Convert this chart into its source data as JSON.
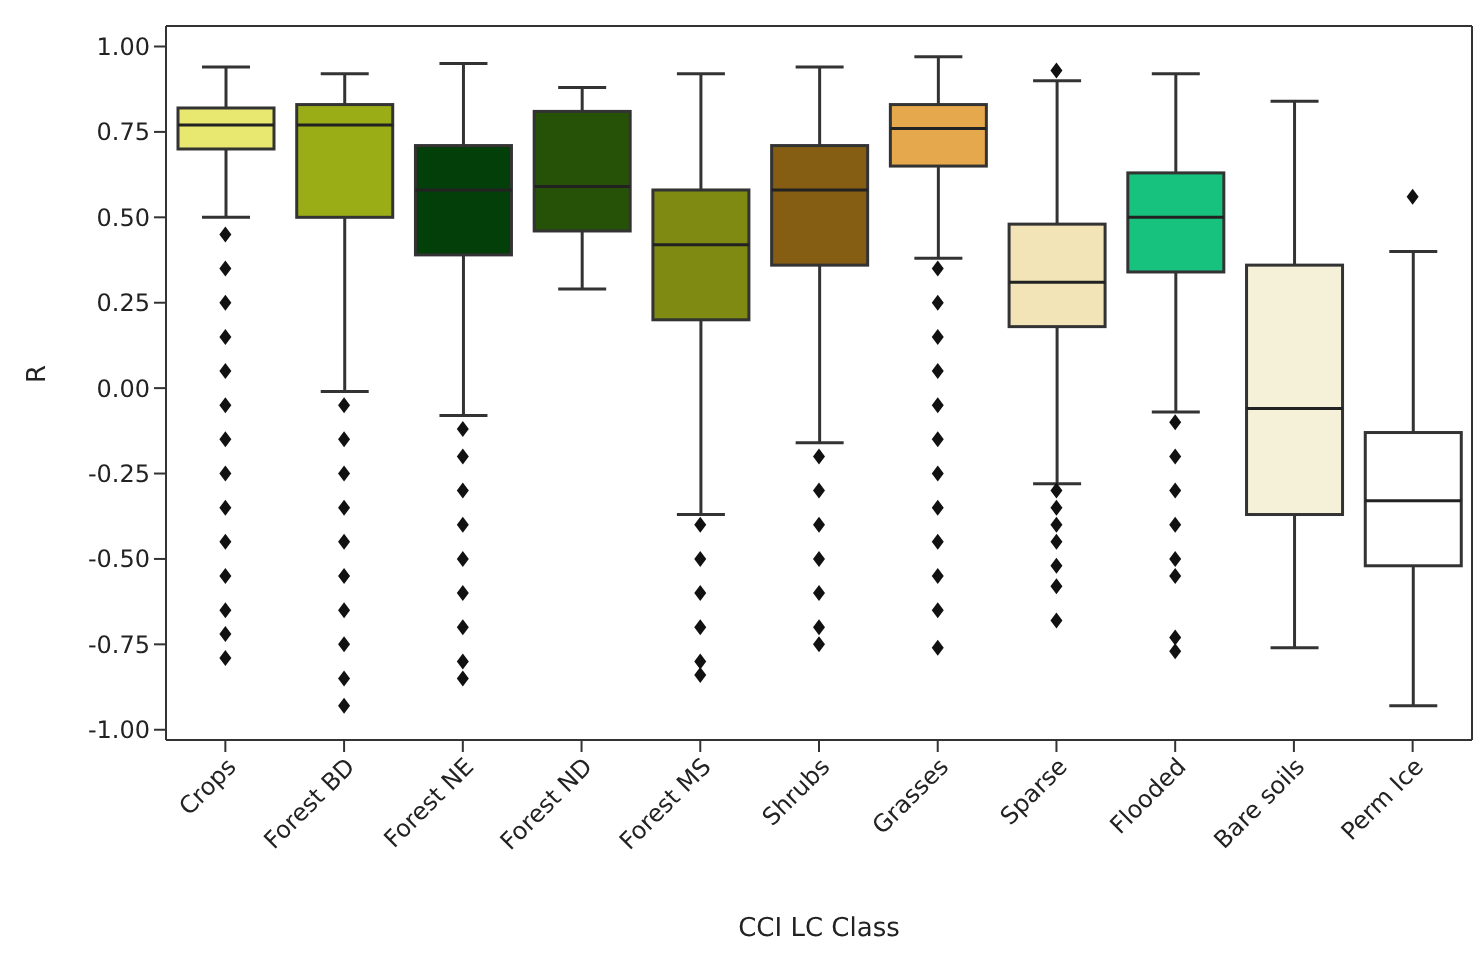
{
  "chart_data": {
    "type": "box",
    "xlabel": "CCI LC Class",
    "ylabel": "R",
    "categories": [
      "Crops",
      "Forest BD",
      "Forest NE",
      "Forest ND",
      "Forest MS",
      "Shrubs",
      "Grasses",
      "Sparse",
      "Flooded",
      "Bare soils",
      "Perm Ice"
    ],
    "colors": [
      "#e8e870",
      "#9aad16",
      "#033f08",
      "#265207",
      "#7f8a12",
      "#855e13",
      "#e6a84c",
      "#f2e4b7",
      "#16c27e",
      "#f5f0d8",
      "#ffffff"
    ],
    "boxes": [
      {
        "low": 0.5,
        "q1": 0.7,
        "median": 0.77,
        "q3": 0.82,
        "high": 0.94,
        "outliers": [
          0.45,
          0.35,
          0.25,
          0.15,
          0.05,
          -0.05,
          -0.15,
          -0.25,
          -0.35,
          -0.45,
          -0.55,
          -0.65,
          -0.72,
          -0.79
        ]
      },
      {
        "low": -0.01,
        "q1": 0.5,
        "median": 0.77,
        "q3": 0.83,
        "high": 0.92,
        "outliers": [
          -0.05,
          -0.15,
          -0.25,
          -0.35,
          -0.45,
          -0.55,
          -0.65,
          -0.75,
          -0.85,
          -0.93
        ]
      },
      {
        "low": -0.08,
        "q1": 0.39,
        "median": 0.58,
        "q3": 0.71,
        "high": 0.95,
        "outliers": [
          -0.12,
          -0.2,
          -0.3,
          -0.4,
          -0.5,
          -0.6,
          -0.7,
          -0.8,
          -0.85
        ]
      },
      {
        "low": 0.29,
        "q1": 0.46,
        "median": 0.59,
        "q3": 0.81,
        "high": 0.88
      },
      {
        "low": -0.37,
        "q1": 0.2,
        "median": 0.42,
        "q3": 0.58,
        "high": 0.92,
        "outliers": [
          -0.4,
          -0.5,
          -0.6,
          -0.7,
          -0.8,
          -0.84
        ]
      },
      {
        "low": -0.16,
        "q1": 0.36,
        "median": 0.58,
        "q3": 0.71,
        "high": 0.94,
        "outliers": [
          -0.2,
          -0.3,
          -0.4,
          -0.5,
          -0.6,
          -0.7,
          -0.75
        ]
      },
      {
        "low": 0.38,
        "q1": 0.65,
        "median": 0.76,
        "q3": 0.83,
        "high": 0.97,
        "outliers": [
          0.35,
          0.25,
          0.15,
          0.05,
          -0.05,
          -0.15,
          -0.25,
          -0.35,
          -0.45,
          -0.55,
          -0.65,
          -0.76
        ]
      },
      {
        "low": -0.28,
        "q1": 0.18,
        "median": 0.31,
        "q3": 0.48,
        "high": 0.9,
        "outliers": [
          0.93,
          -0.3,
          -0.35,
          -0.4,
          -0.45,
          -0.52,
          -0.58,
          -0.68
        ]
      },
      {
        "low": -0.07,
        "q1": 0.34,
        "median": 0.5,
        "q3": 0.63,
        "high": 0.92,
        "outliers": [
          -0.1,
          -0.2,
          -0.3,
          -0.4,
          -0.5,
          -0.55,
          -0.73,
          -0.77
        ]
      },
      {
        "low": -0.76,
        "q1": -0.37,
        "median": -0.06,
        "q3": 0.36,
        "high": 0.84
      },
      {
        "low": -0.93,
        "q1": -0.52,
        "median": -0.33,
        "q3": -0.13,
        "high": 0.4,
        "outliers": [
          0.56
        ]
      }
    ],
    "ylim": [
      -1.03,
      1.06
    ],
    "yticks": [
      {
        "value": 1,
        "label": "1.00"
      },
      0.75,
      {
        "value": 0.5,
        "label": "0.50"
      },
      0.25,
      {
        "value": 0,
        "label": "0.00"
      },
      -0.25,
      {
        "value": -0.5,
        "label": "-0.50"
      },
      -0.75,
      {
        "value": -1,
        "label": "-1.00"
      }
    ],
    "marker": "diamond"
  }
}
